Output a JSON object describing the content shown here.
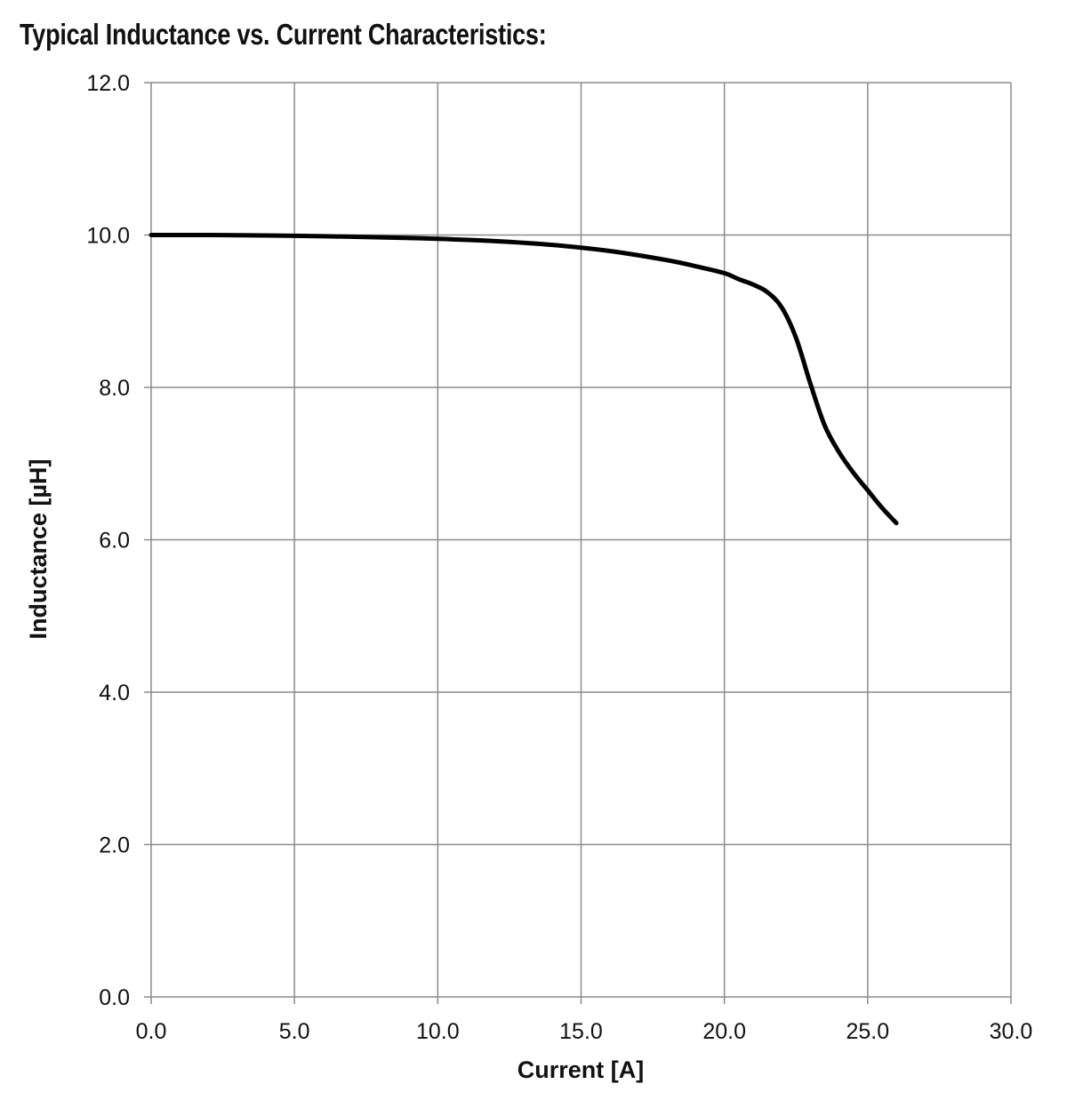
{
  "chart_data": {
    "type": "line",
    "title": "Typical Inductance vs. Current Characteristics:",
    "xlabel": "Current [A]",
    "ylabel": "Inductance [µH]",
    "xlim": [
      0,
      30
    ],
    "ylim": [
      0,
      12
    ],
    "x_ticks": [
      "0.0",
      "5.0",
      "10.0",
      "15.0",
      "20.0",
      "25.0",
      "30.0"
    ],
    "y_ticks": [
      "0.0",
      "2.0",
      "4.0",
      "6.0",
      "8.0",
      "10.0",
      "12.0"
    ],
    "grid": true,
    "legend": "none",
    "line_color": "#000000",
    "grid_color": "#8c8c8c",
    "series": [
      {
        "x": [
          0,
          2,
          5,
          8,
          10,
          12,
          14,
          16,
          18,
          19,
          20,
          20.5,
          21,
          21.5,
          22,
          22.5,
          23,
          23.5,
          24,
          24.5,
          25,
          25.5,
          26
        ],
        "y": [
          10.0,
          10.0,
          9.99,
          9.97,
          9.95,
          9.92,
          9.87,
          9.79,
          9.67,
          9.59,
          9.5,
          9.42,
          9.35,
          9.25,
          9.05,
          8.65,
          8.05,
          7.5,
          7.15,
          6.88,
          6.65,
          6.42,
          6.22
        ]
      }
    ]
  }
}
